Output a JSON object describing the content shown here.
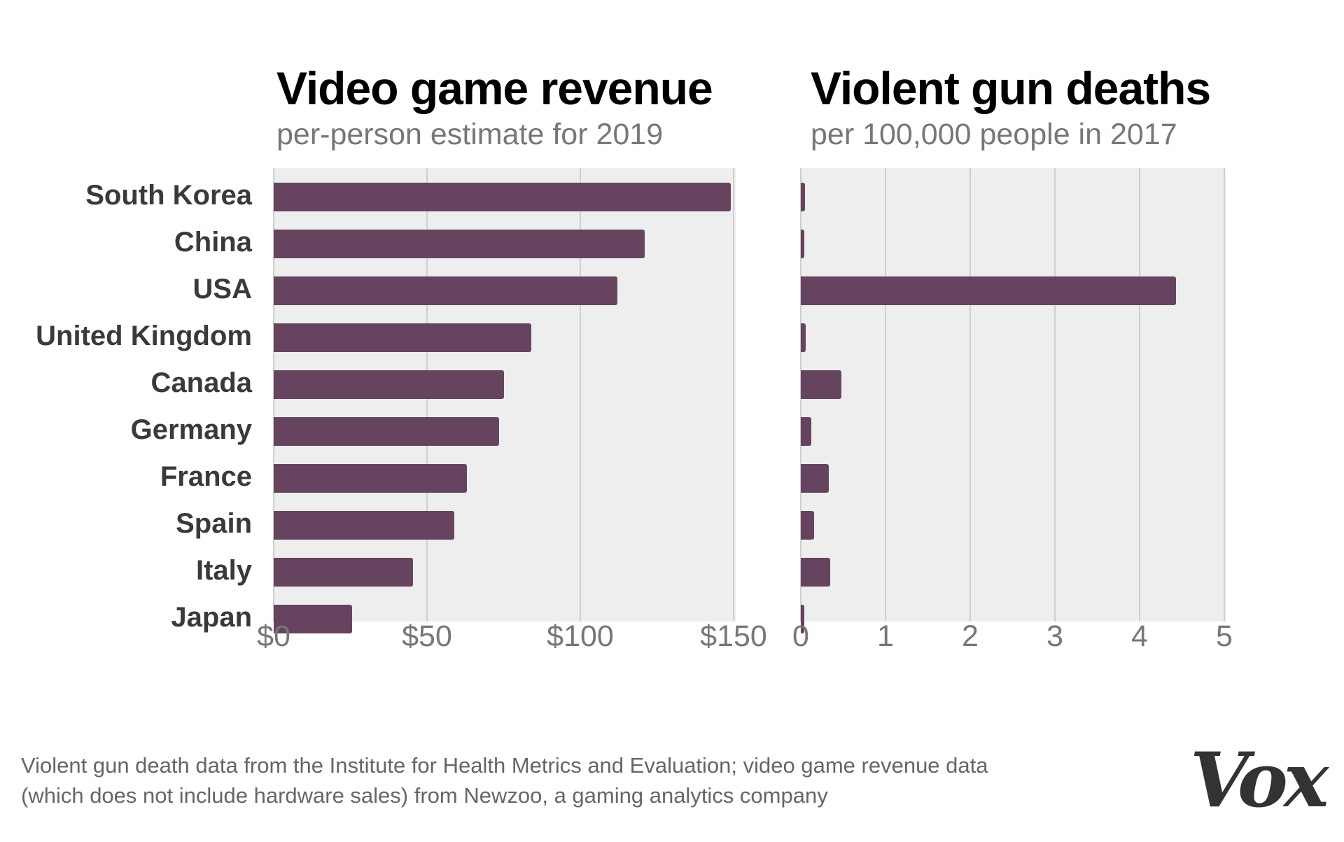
{
  "chart_data": [
    {
      "type": "bar",
      "orientation": "horizontal",
      "title": "Video game revenue",
      "subtitle": "per-person estimate for 2019",
      "categories": [
        "South Korea",
        "China",
        "USA",
        "United Kingdom",
        "Canada",
        "Germany",
        "France",
        "Spain",
        "Italy",
        "Japan"
      ],
      "values": [
        149,
        121,
        112,
        84,
        75,
        73.5,
        63,
        59,
        45.5,
        25.5
      ],
      "xlim": [
        0,
        150
      ],
      "ticks": [
        0,
        50,
        100,
        150
      ],
      "tick_labels": [
        "$0",
        "$50",
        "$100",
        "$150"
      ],
      "grid": true,
      "color": "#66445f"
    },
    {
      "type": "bar",
      "orientation": "horizontal",
      "title": "Violent gun deaths",
      "subtitle": "per 100,000 people in 2017",
      "categories": [
        "South Korea",
        "China",
        "USA",
        "United Kingdom",
        "Canada",
        "Germany",
        "France",
        "Spain",
        "Italy",
        "Japan"
      ],
      "values": [
        0.05,
        0.04,
        4.43,
        0.06,
        0.48,
        0.12,
        0.33,
        0.16,
        0.35,
        0.04
      ],
      "xlim": [
        0,
        5
      ],
      "ticks": [
        0,
        1,
        2,
        3,
        4,
        5
      ],
      "tick_labels": [
        "0",
        "1",
        "2",
        "3",
        "4",
        "5"
      ],
      "grid": true,
      "color": "#66445f"
    }
  ],
  "footnote": {
    "line1": "Violent gun death data from the Institute for Health Metrics and Evaluation; video game revenue data",
    "line2": "(which does not include hardware sales) from Newzoo, a gaming analytics company"
  },
  "logo": "Vox"
}
